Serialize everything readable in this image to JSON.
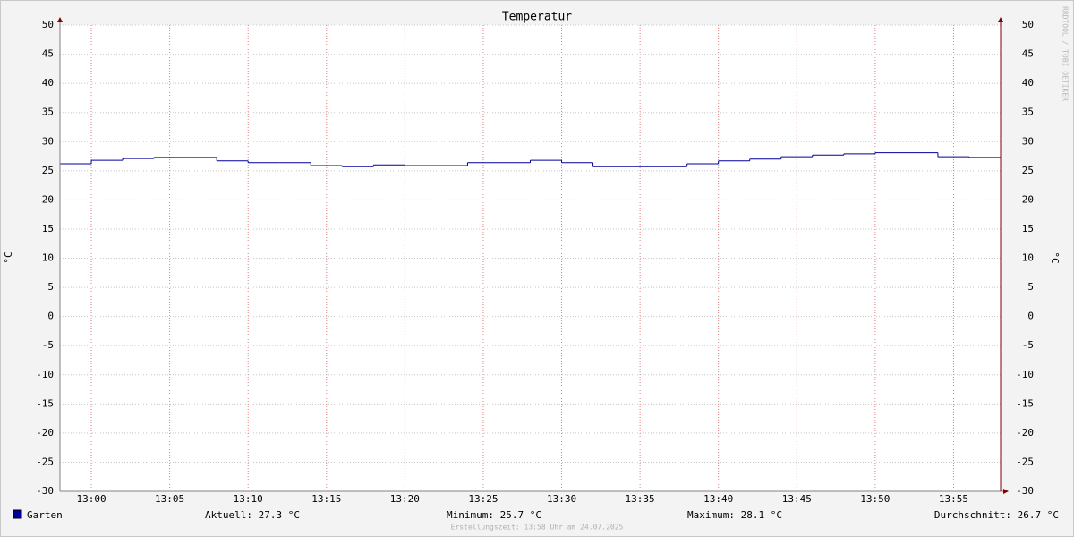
{
  "chart_data": {
    "type": "step",
    "title": "Temperatur",
    "y_label": "°C",
    "y2_label": "°C",
    "x": [
      778,
      780,
      782,
      784,
      786,
      788,
      790,
      792,
      794,
      796,
      798,
      800,
      802,
      804,
      806,
      808,
      810,
      812,
      814,
      816,
      818,
      820,
      822,
      824,
      826,
      828,
      830,
      832,
      834,
      836
    ],
    "xlim": [
      778,
      838
    ],
    "xticks": [
      {
        "value": 780,
        "label": "13:00"
      },
      {
        "value": 785,
        "label": "13:05"
      },
      {
        "value": 790,
        "label": "13:10"
      },
      {
        "value": 795,
        "label": "13:15"
      },
      {
        "value": 800,
        "label": "13:20"
      },
      {
        "value": 805,
        "label": "13:25"
      },
      {
        "value": 810,
        "label": "13:30"
      },
      {
        "value": 815,
        "label": "13:35"
      },
      {
        "value": 820,
        "label": "13:40"
      },
      {
        "value": 825,
        "label": "13:45"
      },
      {
        "value": 830,
        "label": "13:50"
      },
      {
        "value": 835,
        "label": "13:55"
      }
    ],
    "ylim": [
      -30,
      50
    ],
    "yticks": [
      -30,
      -25,
      -20,
      -15,
      -10,
      -5,
      0,
      5,
      10,
      15,
      20,
      25,
      30,
      35,
      40,
      45,
      50
    ],
    "grid": true,
    "series": [
      {
        "name": "Garten",
        "color": "#000099",
        "values": [
          26.2,
          26.8,
          27.1,
          27.3,
          27.3,
          26.7,
          26.4,
          26.4,
          25.9,
          25.7,
          26.0,
          25.9,
          25.9,
          26.4,
          26.4,
          26.8,
          26.4,
          25.7,
          25.7,
          25.7,
          26.2,
          26.7,
          27.0,
          27.4,
          27.7,
          27.9,
          28.1,
          28.1,
          27.4,
          27.3
        ]
      }
    ],
    "stats": [
      "Aktuell: 27.3 °C",
      "Minimum: 25.7 °C",
      "Maximum: 28.1 °C",
      "Durchschnitt: 26.7 °C"
    ],
    "footer": "Erstellungszeit: 13:58 Uhr am 24.07.2025",
    "watermark": "RRDTOOL / TOBI OETIKER"
  }
}
